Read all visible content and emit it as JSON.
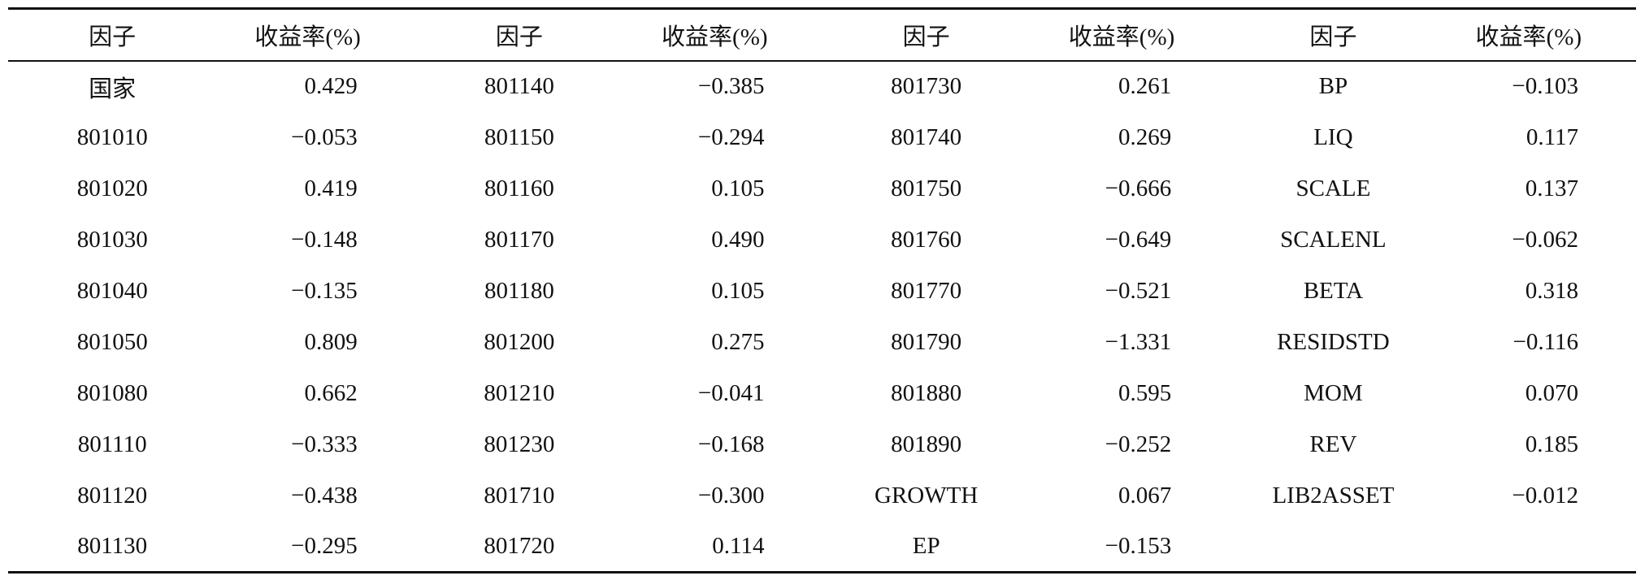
{
  "table": {
    "header": [
      "因子",
      "收益率(%)",
      "因子",
      "收益率(%)",
      "因子",
      "收益率(%)",
      "因子",
      "收益率(%)"
    ],
    "rows": [
      [
        "国家",
        "0.429",
        "801140",
        "−0.385",
        "801730",
        "0.261",
        "BP",
        "−0.103"
      ],
      [
        "801010",
        "−0.053",
        "801150",
        "−0.294",
        "801740",
        "0.269",
        "LIQ",
        "0.117"
      ],
      [
        "801020",
        "0.419",
        "801160",
        "0.105",
        "801750",
        "−0.666",
        "SCALE",
        "0.137"
      ],
      [
        "801030",
        "−0.148",
        "801170",
        "0.490",
        "801760",
        "−0.649",
        "SCALENL",
        "−0.062"
      ],
      [
        "801040",
        "−0.135",
        "801180",
        "0.105",
        "801770",
        "−0.521",
        "BETA",
        "0.318"
      ],
      [
        "801050",
        "0.809",
        "801200",
        "0.275",
        "801790",
        "−1.331",
        "RESIDSTD",
        "−0.116"
      ],
      [
        "801080",
        "0.662",
        "801210",
        "−0.041",
        "801880",
        "0.595",
        "MOM",
        "0.070"
      ],
      [
        "801110",
        "−0.333",
        "801230",
        "−0.168",
        "801890",
        "−0.252",
        "REV",
        "0.185"
      ],
      [
        "801120",
        "−0.438",
        "801710",
        "−0.300",
        "GROWTH",
        "0.067",
        "LIB2ASSET",
        "−0.012"
      ],
      [
        "801130",
        "−0.295",
        "801720",
        "0.114",
        "EP",
        "−0.153"
      ]
    ]
  }
}
